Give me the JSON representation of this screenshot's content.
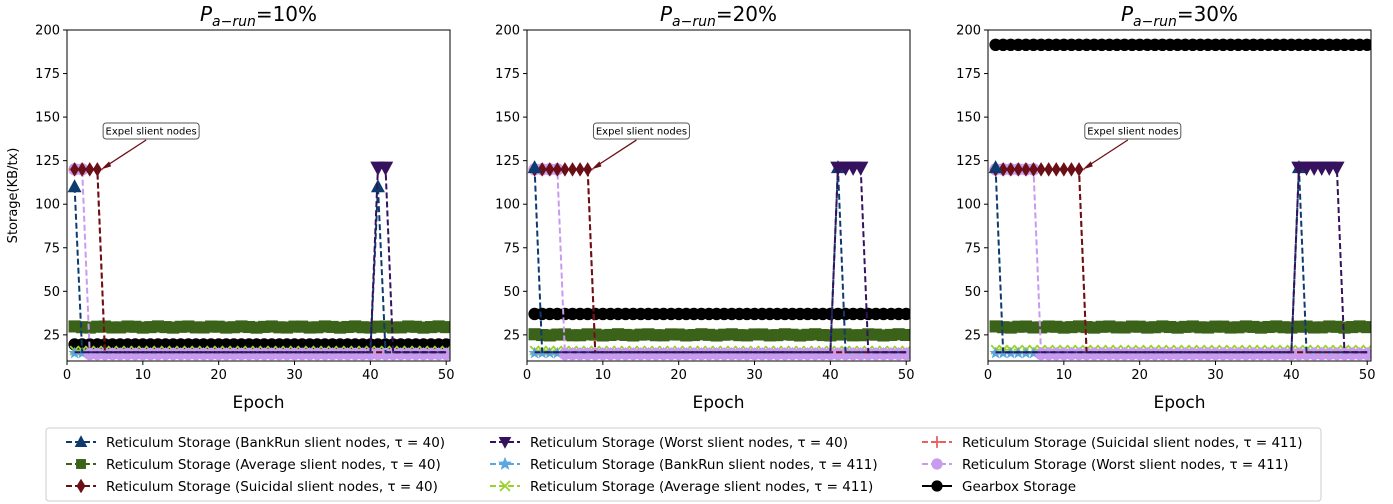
{
  "chart_data": {
    "type": "line",
    "shared": {
      "xlabel": "Epoch",
      "ylabel": "Storage(KB/tx)",
      "xlim": [
        0,
        50.5
      ],
      "ylim": [
        10,
        200
      ],
      "xticks": [
        0,
        10,
        20,
        30,
        40,
        50
      ],
      "yticks": [
        25,
        50,
        75,
        100,
        125,
        150,
        175,
        200
      ],
      "grid": false,
      "legend_placement": "bottom-center, 3 columns",
      "annotation_text": "Expel slient nodes"
    },
    "legend": [
      {
        "key": "bank40",
        "label": "Reticulum Storage (BankRun slient nodes, τ = 40)",
        "color": "#0d3b6e",
        "marker": "triangle-up",
        "dashed": true
      },
      {
        "key": "avg40",
        "label": "Reticulum Storage (Average slient nodes, τ = 40)",
        "color": "#3a6218",
        "marker": "square",
        "dashed": true
      },
      {
        "key": "sui40",
        "label": "Reticulum Storage (Suicidal slient nodes, τ = 40)",
        "color": "#6b0f16",
        "marker": "diamond",
        "dashed": true
      },
      {
        "key": "worst40",
        "label": "Reticulum Storage (Worst slient nodes, τ = 40)",
        "color": "#36125e",
        "marker": "triangle-down",
        "dashed": true
      },
      {
        "key": "bank411",
        "label": "Reticulum Storage (BankRun slient nodes, τ = 411)",
        "color": "#5aa7e3",
        "marker": "star",
        "dashed": true
      },
      {
        "key": "avg411",
        "label": "Reticulum Storage (Average slient nodes, τ = 411)",
        "color": "#9ad12a",
        "marker": "x",
        "dashed": true
      },
      {
        "key": "sui411",
        "label": "Reticulum Storage (Suicidal slient nodes, τ = 411)",
        "color": "#ea6060",
        "marker": "plus",
        "dashed": true
      },
      {
        "key": "worst411",
        "label": "Reticulum Storage (Worst slient nodes, τ = 411)",
        "color": "#c89af0",
        "marker": "circle",
        "dashed": true
      },
      {
        "key": "gearbox",
        "label": "Gearbox Storage",
        "color": "#000000",
        "marker": "circle",
        "dashed": false
      }
    ],
    "panels": [
      {
        "title_prefix": "P",
        "title_sub": "a-run",
        "title_value": "=10%",
        "annotation_point": [
          4.5,
          120
        ],
        "series": {
          "avg40": {
            "base": 29.5,
            "from": 1,
            "to": 50
          },
          "gearbox": {
            "base": 19.5,
            "from": 1,
            "to": 50
          },
          "avg411": {
            "base": 16.0,
            "from": 1,
            "to": 50
          },
          "bank411": {
            "base": 14.5,
            "from": 1,
            "to": 50
          },
          "worst411": {
            "base": 14.0,
            "from": 1,
            "to": 50
          },
          "bank40": {
            "base": 15,
            "spikes": [
              [
                1,
                1,
                110
              ],
              [
                41,
                41,
                110
              ]
            ],
            "after_spike": 15
          },
          "sui40": {
            "base": 15,
            "spikes": [
              [
                1,
                4,
                120
              ]
            ]
          },
          "sui411": {
            "base": 15,
            "spikes": [
              [
                1,
                4,
                120
              ]
            ]
          },
          "worst40": {
            "base": 15,
            "spikes": [
              [
                41,
                42,
                121
              ]
            ]
          },
          "worst411_spike": {
            "spikes": [
              [
                1,
                2,
                120
              ]
            ]
          }
        }
      },
      {
        "title_prefix": "P",
        "title_sub": "a-run",
        "title_value": "=20%",
        "annotation_point": [
          8.5,
          120
        ],
        "series": {
          "avg40": {
            "base": 25.0,
            "from": 1,
            "to": 50
          },
          "gearbox": {
            "base": 37.0,
            "from": 1,
            "to": 50
          },
          "avg411": {
            "base": 16.0,
            "from": 1,
            "to": 50
          },
          "bank411": {
            "base": 14.5,
            "from": 1,
            "to": 50
          },
          "worst411": {
            "base": 14.0,
            "from": 1,
            "to": 50
          },
          "bank40": {
            "base": 15,
            "spikes": [
              [
                1,
                1,
                121
              ],
              [
                41,
                41,
                121
              ]
            ]
          },
          "sui40": {
            "base": 15,
            "spikes": [
              [
                1,
                8,
                120
              ]
            ]
          },
          "sui411": {
            "base": 15,
            "spikes": [
              [
                1,
                8,
                120
              ]
            ]
          },
          "worst40": {
            "base": 15,
            "spikes": [
              [
                41,
                44,
                121
              ]
            ]
          },
          "worst411_spike": {
            "spikes": [
              [
                1,
                4,
                120
              ]
            ]
          }
        }
      },
      {
        "title_prefix": "P",
        "title_sub": "a-run",
        "title_value": "=30%",
        "annotation_point": [
          12.5,
          120
        ],
        "series": {
          "avg40": {
            "base": 29.5,
            "from": 1,
            "to": 50
          },
          "gearbox": {
            "base": 191.5,
            "from": 1,
            "to": 50
          },
          "avg411": {
            "base": 16.5,
            "from": 1,
            "to": 50
          },
          "bank411": {
            "base": 14.5,
            "from": 1,
            "to": 50
          },
          "worst411": {
            "base": 14.0,
            "from": 1,
            "to": 50
          },
          "bank40": {
            "base": 15,
            "spikes": [
              [
                1,
                1,
                121
              ],
              [
                41,
                41,
                121
              ]
            ]
          },
          "sui40": {
            "base": 15,
            "spikes": [
              [
                1,
                12,
                120
              ]
            ]
          },
          "sui411": {
            "base": 15,
            "spikes": [
              [
                1,
                12,
                120
              ]
            ]
          },
          "worst40": {
            "base": 15,
            "spikes": [
              [
                41,
                46,
                121
              ]
            ]
          },
          "worst411_spike": {
            "spikes": [
              [
                1,
                6,
                120
              ]
            ]
          }
        }
      }
    ]
  }
}
